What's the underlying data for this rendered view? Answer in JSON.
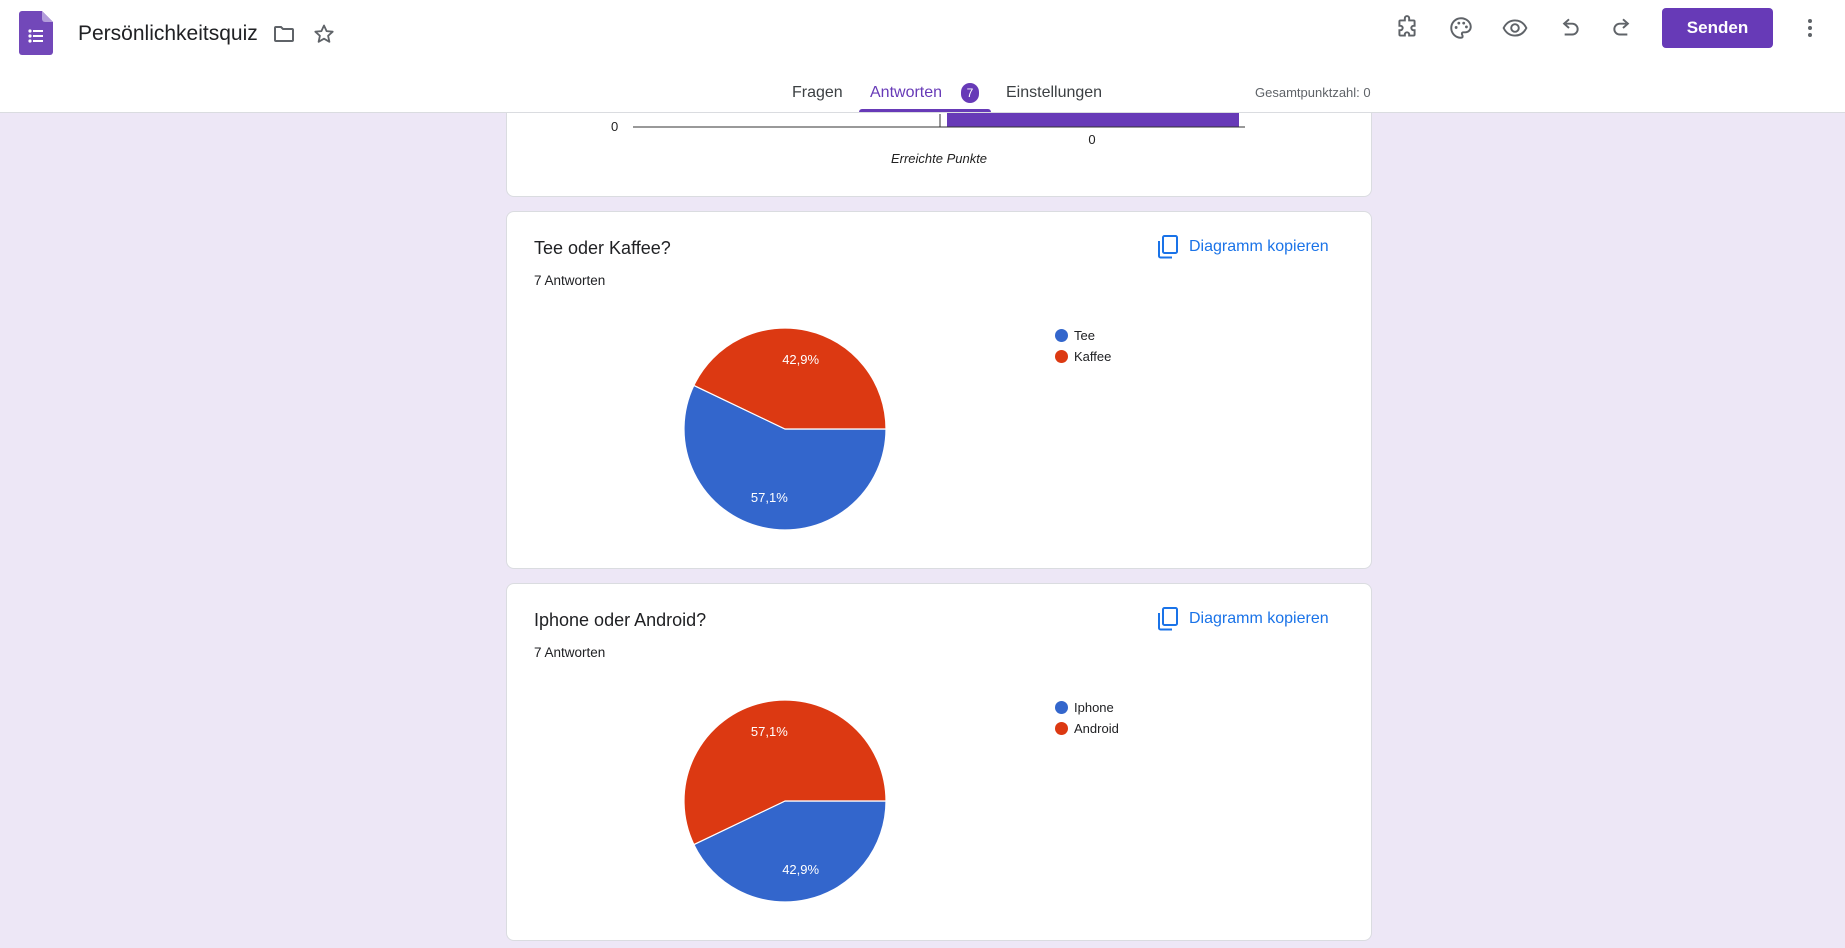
{
  "app": {
    "title": "Persönlichkeitsquiz",
    "send_label": "Senden",
    "accent_color": "#673ab7"
  },
  "header": {
    "icons": [
      "folder-icon",
      "star-icon",
      "puzzle-icon",
      "palette-icon",
      "eye-icon",
      "undo-icon",
      "redo-icon",
      "more-vert-icon"
    ]
  },
  "tabs": {
    "questions": "Fragen",
    "responses": "Antworten",
    "responses_count": "7",
    "settings": "Einstellungen",
    "total_points": "Gesamtpunktzahl: 0"
  },
  "score_card": {
    "y_tick": "0",
    "x_tick": "0",
    "xlabel": "Erreichte Punkte"
  },
  "questions": [
    {
      "title": "Tee oder Kaffee?",
      "responses": "7 Antworten",
      "copy_label": "Diagramm kopieren"
    },
    {
      "title": "Iphone oder Android?",
      "responses": "7 Antworten",
      "copy_label": "Diagramm kopieren"
    }
  ],
  "chart_data": [
    {
      "type": "bar",
      "xlabel": "Erreichte Punkte",
      "categories": [
        "0"
      ],
      "color": "#673ab7"
    },
    {
      "type": "pie",
      "title": "Tee oder Kaffee?",
      "labels": [
        "Tee",
        "Kaffee"
      ],
      "values": [
        57.1,
        42.9
      ],
      "value_labels": [
        "57,1%",
        "42,9%"
      ],
      "colors": [
        "#3366cc",
        "#dc3912"
      ]
    },
    {
      "type": "pie",
      "title": "Iphone oder Android?",
      "labels": [
        "Iphone",
        "Android"
      ],
      "values": [
        42.9,
        57.1
      ],
      "value_labels": [
        "42,9%",
        "57,1%"
      ],
      "colors": [
        "#3366cc",
        "#dc3912"
      ]
    }
  ]
}
